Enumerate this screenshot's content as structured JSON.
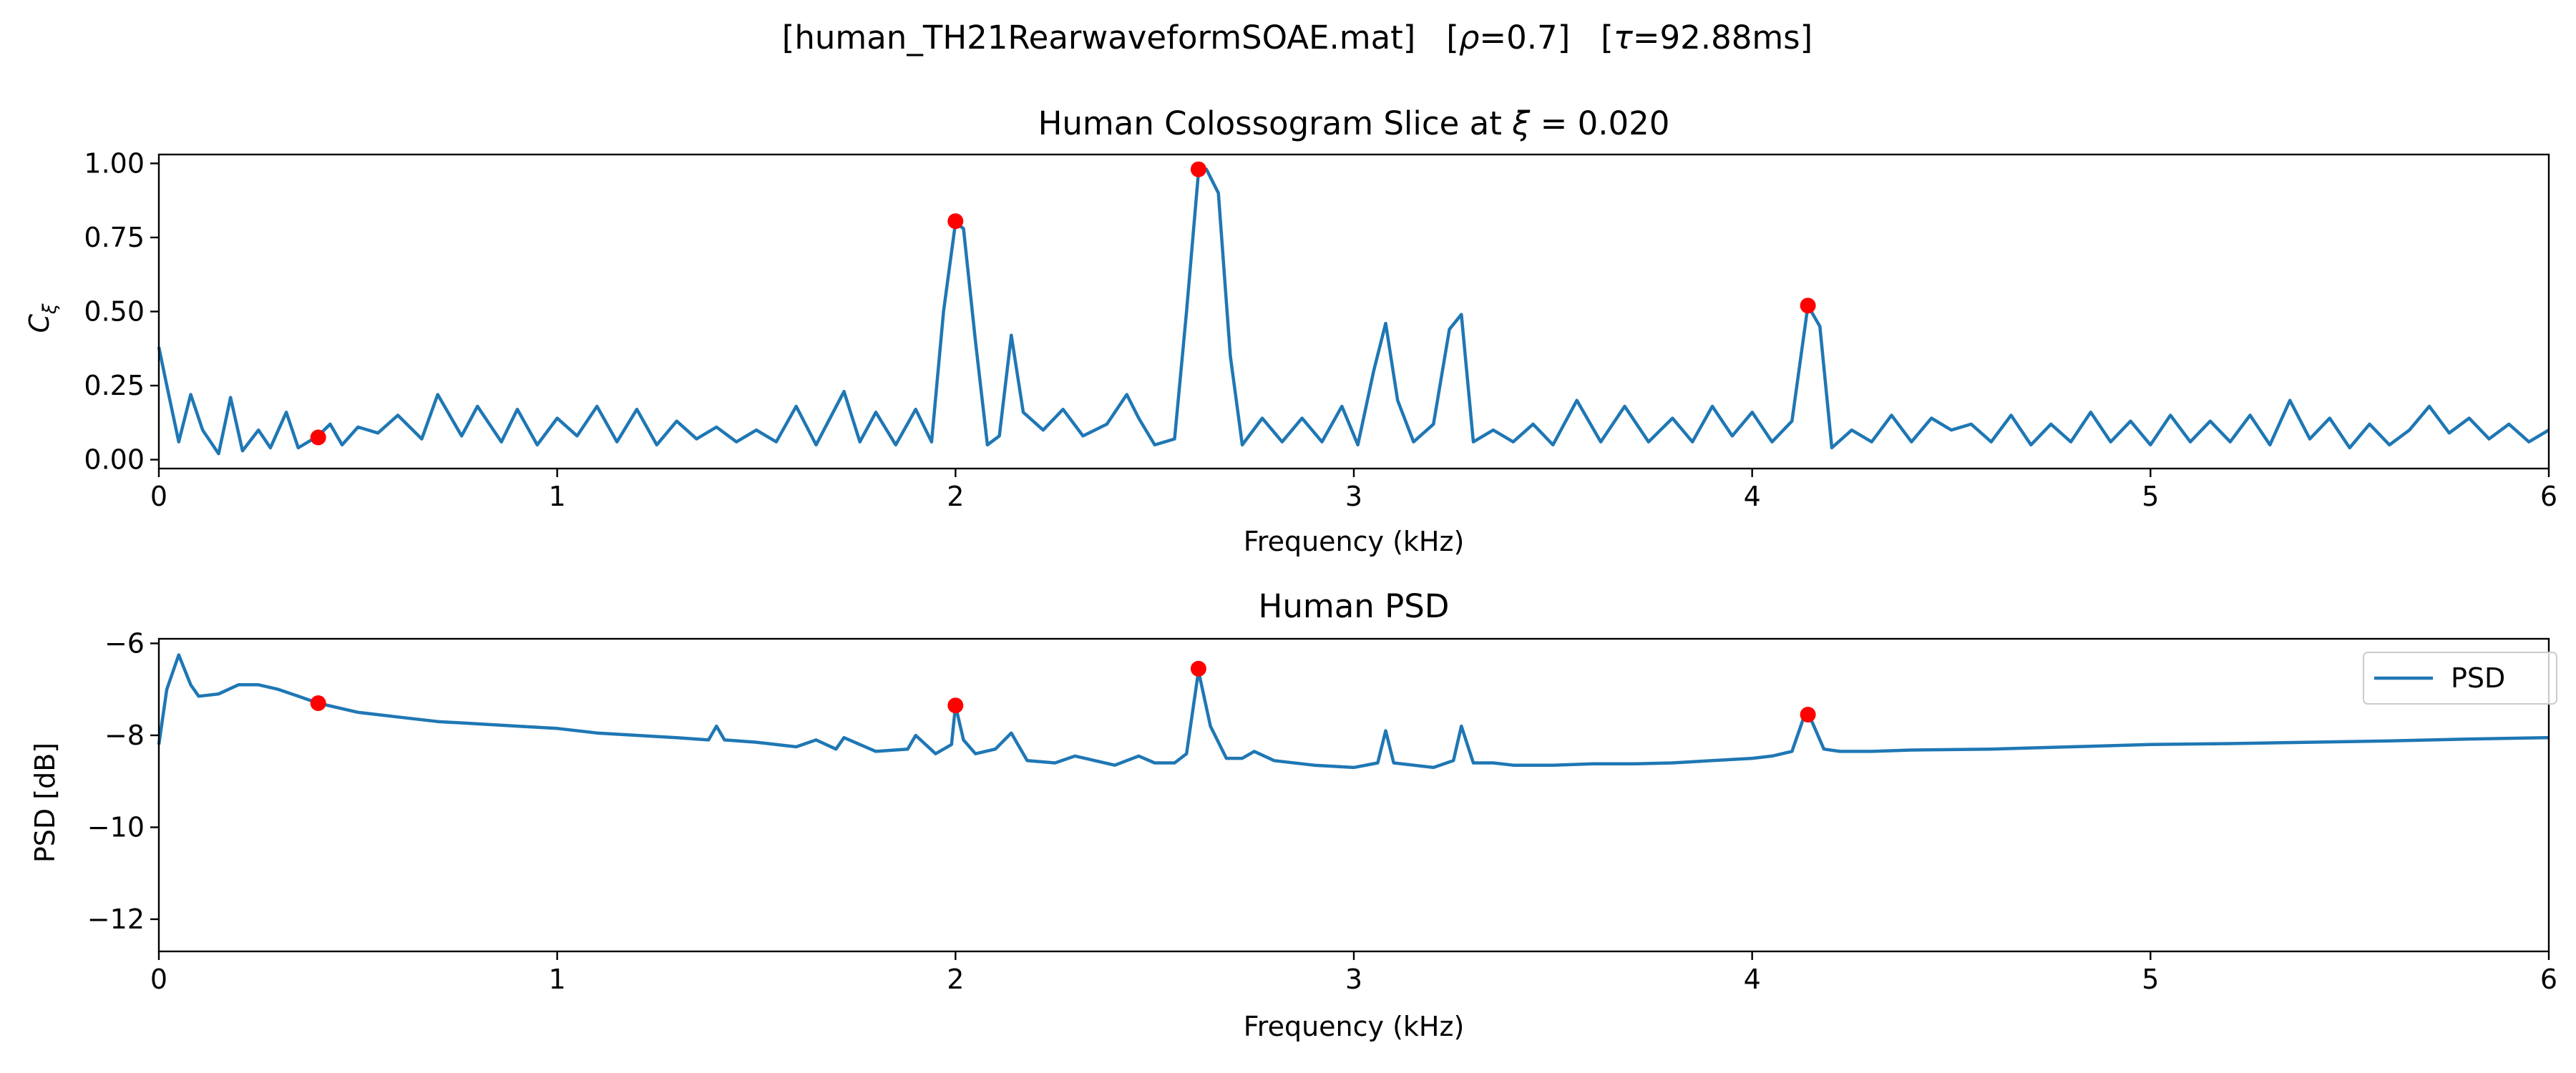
{
  "suptitle": {
    "file": "[human_TH21RearwaveformSOAE.mat]",
    "rho_sym": "ρ",
    "rho_val": "=0.7]",
    "tau_sym": "τ",
    "tau_val": "=92.88ms]"
  },
  "colors": {
    "line": "#1f77b4",
    "peak": "#ff0000",
    "axis": "#000000"
  },
  "chart_data": [
    {
      "type": "line",
      "title": "Human Colossogram Slice at ξ = 0.020",
      "title_parts": {
        "prefix": "Human Colossogram Slice at ",
        "sym": "ξ",
        "suffix": " = 0.020"
      },
      "xlabel": "Frequency (kHz)",
      "ylabel": "C",
      "ylabel_sub": "ξ",
      "xlim": [
        0,
        6
      ],
      "ylim": [
        -0.03,
        1.03
      ],
      "xticks": [
        0,
        1,
        2,
        3,
        4,
        5,
        6
      ],
      "xtick_labels": [
        "0",
        "1",
        "2",
        "3",
        "4",
        "5",
        "6"
      ],
      "yticks": [
        0.0,
        0.25,
        0.5,
        0.75,
        1.0
      ],
      "ytick_labels": [
        "0.00",
        "0.25",
        "0.50",
        "0.75",
        "1.00"
      ],
      "grid": false,
      "series": [
        {
          "x": [
            0,
            0.02,
            0.05,
            0.08,
            0.11,
            0.15,
            0.18,
            0.21,
            0.25,
            0.28,
            0.32,
            0.35,
            0.4,
            0.43,
            0.46,
            0.5,
            0.55,
            0.6,
            0.66,
            0.7,
            0.76,
            0.8,
            0.86,
            0.9,
            0.95,
            1.0,
            1.05,
            1.1,
            1.15,
            1.2,
            1.25,
            1.3,
            1.35,
            1.4,
            1.45,
            1.5,
            1.55,
            1.6,
            1.65,
            1.72,
            1.76,
            1.8,
            1.85,
            1.9,
            1.94,
            1.97,
            2.0,
            2.02,
            2.05,
            2.08,
            2.11,
            2.14,
            2.17,
            2.22,
            2.27,
            2.32,
            2.38,
            2.43,
            2.46,
            2.5,
            2.55,
            2.58,
            2.61,
            2.63,
            2.66,
            2.69,
            2.72,
            2.77,
            2.82,
            2.87,
            2.92,
            2.97,
            3.01,
            3.05,
            3.08,
            3.11,
            3.15,
            3.2,
            3.24,
            3.27,
            3.3,
            3.35,
            3.4,
            3.45,
            3.5,
            3.56,
            3.62,
            3.68,
            3.74,
            3.8,
            3.85,
            3.9,
            3.95,
            4.0,
            4.05,
            4.1,
            4.14,
            4.17,
            4.2,
            4.25,
            4.3,
            4.35,
            4.4,
            4.45,
            4.5,
            4.55,
            4.6,
            4.65,
            4.7,
            4.75,
            4.8,
            4.85,
            4.9,
            4.95,
            5.0,
            5.05,
            5.1,
            5.15,
            5.2,
            5.25,
            5.3,
            5.35,
            5.4,
            5.45,
            5.5,
            5.55,
            5.6,
            5.65,
            5.7,
            5.75,
            5.8,
            5.85,
            5.9,
            5.95,
            6.0
          ],
          "y": [
            0.38,
            0.25,
            0.06,
            0.22,
            0.1,
            0.02,
            0.21,
            0.03,
            0.1,
            0.04,
            0.16,
            0.04,
            0.08,
            0.12,
            0.05,
            0.11,
            0.09,
            0.15,
            0.07,
            0.22,
            0.08,
            0.18,
            0.06,
            0.17,
            0.05,
            0.14,
            0.08,
            0.18,
            0.06,
            0.17,
            0.05,
            0.13,
            0.07,
            0.11,
            0.06,
            0.1,
            0.06,
            0.18,
            0.05,
            0.23,
            0.06,
            0.16,
            0.05,
            0.17,
            0.06,
            0.5,
            0.8,
            0.78,
            0.4,
            0.05,
            0.08,
            0.42,
            0.16,
            0.1,
            0.17,
            0.08,
            0.12,
            0.22,
            0.14,
            0.05,
            0.07,
            0.5,
            0.97,
            0.98,
            0.9,
            0.35,
            0.05,
            0.14,
            0.06,
            0.14,
            0.06,
            0.18,
            0.05,
            0.3,
            0.46,
            0.2,
            0.06,
            0.12,
            0.44,
            0.49,
            0.06,
            0.1,
            0.06,
            0.12,
            0.05,
            0.2,
            0.06,
            0.18,
            0.06,
            0.14,
            0.06,
            0.18,
            0.08,
            0.16,
            0.06,
            0.13,
            0.52,
            0.45,
            0.04,
            0.1,
            0.06,
            0.15,
            0.06,
            0.14,
            0.1,
            0.12,
            0.06,
            0.15,
            0.05,
            0.12,
            0.06,
            0.16,
            0.06,
            0.13,
            0.05,
            0.15,
            0.06,
            0.13,
            0.06,
            0.15,
            0.05,
            0.2,
            0.07,
            0.14,
            0.04,
            0.12,
            0.05,
            0.1,
            0.18,
            0.09,
            0.14,
            0.07,
            0.12,
            0.06,
            0.1
          ]
        }
      ],
      "markers": {
        "x": [
          0.4,
          2.0,
          2.61,
          4.14
        ],
        "y": [
          0.075,
          0.805,
          0.98,
          0.52
        ]
      }
    },
    {
      "type": "line",
      "title": "Human PSD",
      "xlabel": "Frequency (kHz)",
      "ylabel": "PSD [dB]",
      "xlim": [
        0,
        6
      ],
      "ylim": [
        -12.7,
        -5.9
      ],
      "xticks": [
        0,
        1,
        2,
        3,
        4,
        5,
        6
      ],
      "xtick_labels": [
        "0",
        "1",
        "2",
        "3",
        "4",
        "5",
        "6"
      ],
      "yticks": [
        -12,
        -10,
        -8,
        -6
      ],
      "ytick_labels": [
        "−12",
        "−10",
        "−8",
        "−6"
      ],
      "grid": false,
      "legend": {
        "position": "top-right",
        "entries": [
          "PSD"
        ]
      },
      "series": [
        {
          "name": "PSD",
          "x": [
            0,
            0.02,
            0.05,
            0.08,
            0.1,
            0.15,
            0.2,
            0.25,
            0.3,
            0.35,
            0.4,
            0.5,
            0.6,
            0.7,
            0.8,
            0.9,
            1.0,
            1.1,
            1.2,
            1.3,
            1.38,
            1.4,
            1.42,
            1.5,
            1.6,
            1.65,
            1.7,
            1.72,
            1.8,
            1.88,
            1.9,
            1.95,
            1.99,
            2.0,
            2.02,
            2.05,
            2.1,
            2.14,
            2.18,
            2.25,
            2.3,
            2.4,
            2.46,
            2.5,
            2.55,
            2.58,
            2.61,
            2.64,
            2.68,
            2.72,
            2.75,
            2.8,
            2.9,
            3.0,
            3.06,
            3.08,
            3.1,
            3.15,
            3.2,
            3.25,
            3.27,
            3.3,
            3.35,
            3.4,
            3.5,
            3.6,
            3.7,
            3.8,
            3.9,
            4.0,
            4.05,
            4.1,
            4.13,
            4.15,
            4.18,
            4.22,
            4.3,
            4.4,
            4.6,
            4.8,
            5.0,
            5.2,
            5.4,
            5.6,
            5.8,
            6.0
          ],
          "y": [
            -8.2,
            -7.0,
            -6.25,
            -6.9,
            -7.15,
            -7.1,
            -6.9,
            -6.9,
            -7.0,
            -7.15,
            -7.3,
            -7.5,
            -7.6,
            -7.7,
            -7.75,
            -7.8,
            -7.85,
            -7.95,
            -8.0,
            -8.05,
            -8.1,
            -7.8,
            -8.1,
            -8.15,
            -8.25,
            -8.1,
            -8.3,
            -8.05,
            -8.35,
            -8.3,
            -8.0,
            -8.4,
            -8.2,
            -7.35,
            -8.1,
            -8.4,
            -8.3,
            -7.95,
            -8.55,
            -8.6,
            -8.45,
            -8.65,
            -8.45,
            -8.6,
            -8.6,
            -8.4,
            -6.6,
            -7.8,
            -8.5,
            -8.5,
            -8.35,
            -8.55,
            -8.65,
            -8.7,
            -8.6,
            -7.9,
            -8.6,
            -8.65,
            -8.7,
            -8.55,
            -7.8,
            -8.6,
            -8.6,
            -8.65,
            -8.65,
            -8.62,
            -8.62,
            -8.6,
            -8.55,
            -8.5,
            -8.45,
            -8.35,
            -7.6,
            -7.7,
            -8.3,
            -8.35,
            -8.35,
            -8.32,
            -8.3,
            -8.25,
            -8.2,
            -8.18,
            -8.15,
            -8.12,
            -8.08,
            -8.05
          ]
        }
      ],
      "markers": {
        "x": [
          0.4,
          2.0,
          2.61,
          4.14
        ],
        "y": [
          -7.3,
          -7.35,
          -6.55,
          -7.55
        ]
      }
    }
  ]
}
